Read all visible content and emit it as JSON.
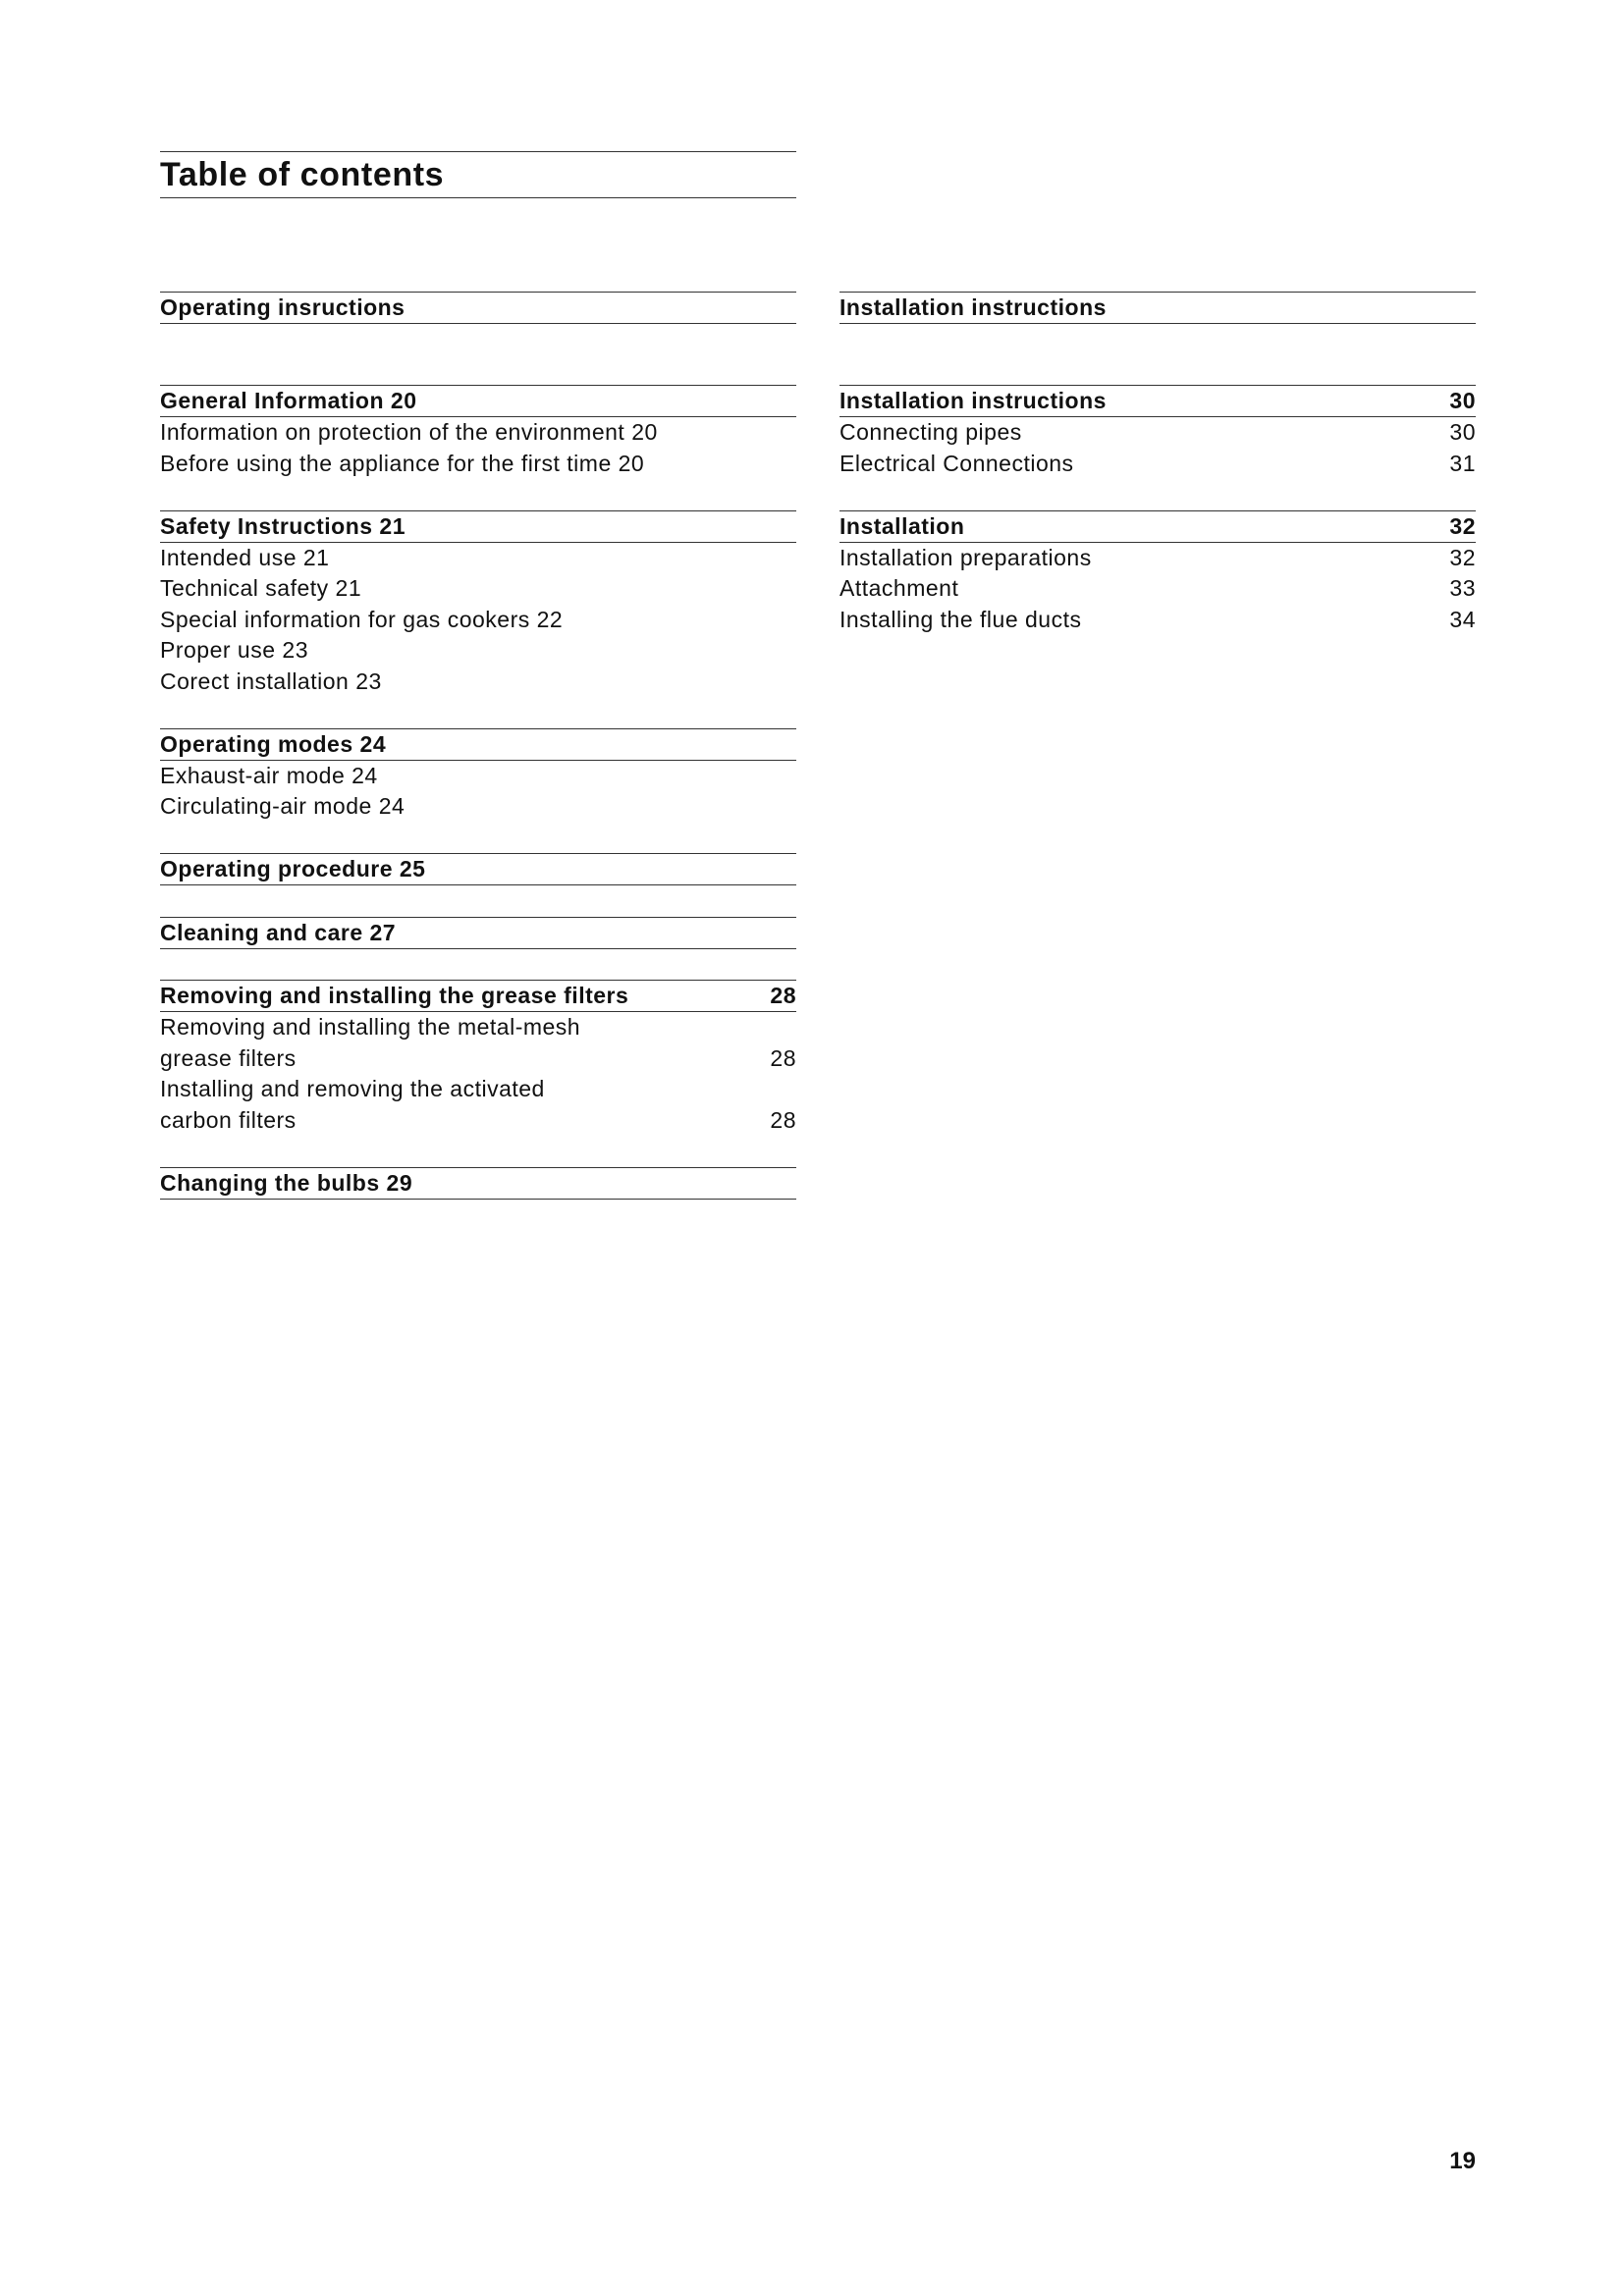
{
  "title": "Table of contents",
  "left": {
    "part": "Operating insructions",
    "sections": [
      {
        "heading": "General Information 20",
        "page": "",
        "items": [
          {
            "text": "Information on protection of the environment 20",
            "page": ""
          },
          {
            "text": "Before using the appliance for the first time 20",
            "page": ""
          }
        ]
      },
      {
        "heading": "Safety Instructions 21",
        "page": "",
        "items": [
          {
            "text": "Intended use 21",
            "page": ""
          },
          {
            "text": "Technical safety 21",
            "page": ""
          },
          {
            "text": "Special information for gas cookers 22",
            "page": ""
          },
          {
            "text": "Proper use 23",
            "page": ""
          },
          {
            "text": "Corect installation 23",
            "page": ""
          }
        ]
      },
      {
        "heading": "Operating modes 24",
        "page": "",
        "items": [
          {
            "text": "Exhaust-air mode 24",
            "page": ""
          },
          {
            "text": "Circulating-air mode 24",
            "page": ""
          }
        ]
      },
      {
        "heading": "Operating procedure 25",
        "page": "",
        "items": []
      },
      {
        "heading": "Cleaning and care 27",
        "page": "",
        "items": []
      },
      {
        "heading": "Removing and installing the grease filters",
        "page": "28",
        "items": [
          {
            "text": "Removing and installing the metal-mesh",
            "page": ""
          },
          {
            "text": "grease filters",
            "page": "28"
          },
          {
            "text": "Installing and removing the activated",
            "page": ""
          },
          {
            "text": "carbon filters",
            "page": "28"
          }
        ]
      },
      {
        "heading": "Changing the bulbs 29",
        "page": "",
        "items": []
      }
    ]
  },
  "right": {
    "part": "Installation instructions",
    "sections": [
      {
        "heading": "Installation instructions",
        "page": "30",
        "items": [
          {
            "text": "Connecting pipes",
            "page": "30"
          },
          {
            "text": "Electrical Connections",
            "page": "31"
          }
        ]
      },
      {
        "heading": "Installation",
        "page": "32",
        "items": [
          {
            "text": "Installation preparations",
            "page": "32"
          },
          {
            "text": "Attachment",
            "page": "33"
          },
          {
            "text": "Installing the flue ducts",
            "page": "34"
          }
        ]
      }
    ]
  },
  "page_number": "19"
}
